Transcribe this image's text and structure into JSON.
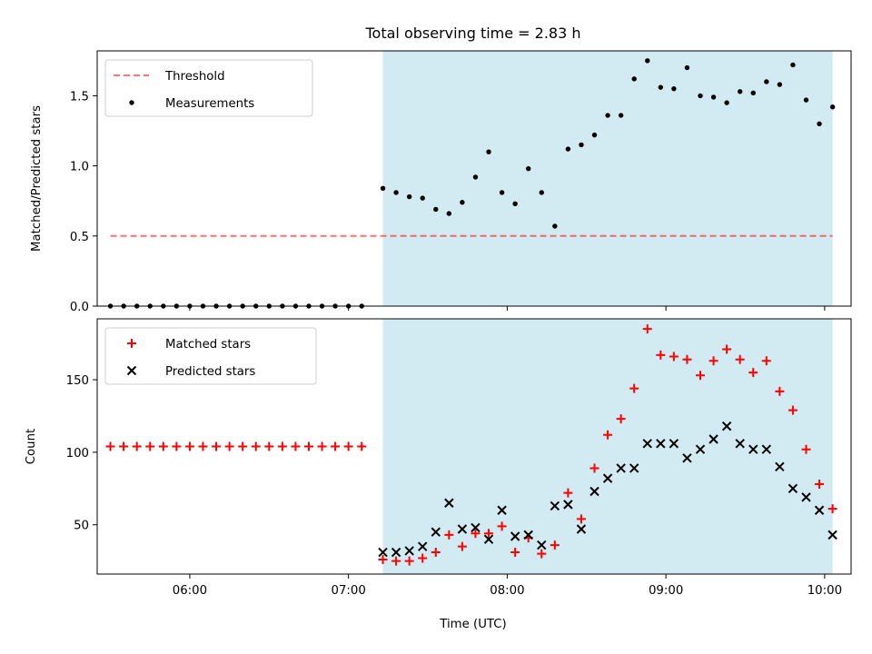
{
  "chart_data": [
    {
      "type": "scatter",
      "title": "Total observing time = 2.83 h",
      "xlabel": "",
      "ylabel": "Matched/Predicted stars",
      "ylim": [
        0,
        1.82
      ],
      "yticks": [
        0.0,
        0.5,
        1.0,
        1.5
      ],
      "ytick_labels": [
        "0.0",
        "0.5",
        "1.0",
        "1.5"
      ],
      "x_is_time": true,
      "xlim": [
        "05:25",
        "10:10"
      ],
      "highlight_span": {
        "from": "07:13",
        "to": "10:03",
        "color": "#add8e6"
      },
      "grid": false,
      "legend_position": "upper left",
      "series": [
        {
          "name": "Threshold",
          "kind": "line",
          "style": "dashed",
          "color": "#ff0000",
          "x": [
            "05:30",
            "10:03"
          ],
          "y": [
            0.5,
            0.5
          ]
        },
        {
          "name": "Measurements",
          "kind": "scatter",
          "marker": "dot",
          "color": "#000000",
          "x": [
            "05:30",
            "05:35",
            "05:40",
            "05:45",
            "05:50",
            "05:55",
            "06:00",
            "06:05",
            "06:10",
            "06:15",
            "06:20",
            "06:25",
            "06:30",
            "06:35",
            "06:40",
            "06:45",
            "06:50",
            "06:55",
            "07:00",
            "07:05",
            "07:13",
            "07:18",
            "07:23",
            "07:28",
            "07:33",
            "07:38",
            "07:43",
            "07:48",
            "07:53",
            "07:58",
            "08:03",
            "08:08",
            "08:13",
            "08:18",
            "08:23",
            "08:28",
            "08:33",
            "08:38",
            "08:43",
            "08:48",
            "08:53",
            "08:58",
            "09:03",
            "09:08",
            "09:13",
            "09:18",
            "09:23",
            "09:28",
            "09:33",
            "09:38",
            "09:43",
            "09:48",
            "09:53",
            "09:58",
            "10:03"
          ],
          "y": [
            0,
            0,
            0,
            0,
            0,
            0,
            0,
            0,
            0,
            0,
            0,
            0,
            0,
            0,
            0,
            0,
            0,
            0,
            0,
            0,
            0.84,
            0.81,
            0.78,
            0.77,
            0.69,
            0.66,
            0.74,
            0.92,
            1.1,
            0.81,
            0.73,
            0.98,
            0.81,
            0.57,
            1.12,
            1.15,
            1.22,
            1.36,
            1.36,
            1.62,
            1.75,
            1.56,
            1.55,
            1.7,
            1.5,
            1.49,
            1.45,
            1.53,
            1.52,
            1.6,
            1.58,
            1.72,
            1.47,
            1.3,
            1.42
          ]
        }
      ]
    },
    {
      "type": "scatter",
      "title": "",
      "xlabel": "Time (UTC)",
      "ylabel": "Count",
      "ylim": [
        16,
        192
      ],
      "yticks": [
        50,
        100,
        150
      ],
      "ytick_labels": [
        "50",
        "100",
        "150"
      ],
      "x_is_time": true,
      "xlim": [
        "05:25",
        "10:10"
      ],
      "xticks": [
        "06:00",
        "07:00",
        "08:00",
        "09:00",
        "10:00"
      ],
      "xtick_labels": [
        "06:00",
        "07:00",
        "08:00",
        "09:00",
        "10:00"
      ],
      "highlight_span": {
        "from": "07:13",
        "to": "10:03",
        "color": "#add8e6"
      },
      "grid": false,
      "legend_position": "upper left",
      "series": [
        {
          "name": "Matched stars",
          "kind": "scatter",
          "marker": "plus",
          "color": "#ff0000",
          "x": [
            "05:30",
            "05:35",
            "05:40",
            "05:45",
            "05:50",
            "05:55",
            "06:00",
            "06:05",
            "06:10",
            "06:15",
            "06:20",
            "06:25",
            "06:30",
            "06:35",
            "06:40",
            "06:45",
            "06:50",
            "06:55",
            "07:00",
            "07:05",
            "07:13",
            "07:18",
            "07:23",
            "07:28",
            "07:33",
            "07:38",
            "07:43",
            "07:48",
            "07:53",
            "07:58",
            "08:03",
            "08:08",
            "08:13",
            "08:18",
            "08:23",
            "08:28",
            "08:33",
            "08:38",
            "08:43",
            "08:48",
            "08:53",
            "08:58",
            "09:03",
            "09:08",
            "09:13",
            "09:18",
            "09:23",
            "09:28",
            "09:33",
            "09:38",
            "09:43",
            "09:48",
            "09:53",
            "09:58",
            "10:03"
          ],
          "y": [
            104,
            104,
            104,
            104,
            104,
            104,
            104,
            104,
            104,
            104,
            104,
            104,
            104,
            104,
            104,
            104,
            104,
            104,
            104,
            104,
            26,
            25,
            25,
            27,
            31,
            43,
            35,
            44,
            44,
            49,
            31,
            41,
            30,
            36,
            72,
            54,
            89,
            112,
            123,
            144,
            185,
            167,
            166,
            164,
            153,
            163,
            171,
            164,
            155,
            163,
            142,
            129,
            102,
            78,
            61
          ]
        },
        {
          "name": "Predicted stars",
          "kind": "scatter",
          "marker": "x",
          "color": "#000000",
          "x": [
            "07:13",
            "07:18",
            "07:23",
            "07:28",
            "07:33",
            "07:38",
            "07:43",
            "07:48",
            "07:53",
            "07:58",
            "08:03",
            "08:08",
            "08:13",
            "08:18",
            "08:23",
            "08:28",
            "08:33",
            "08:38",
            "08:43",
            "08:48",
            "08:53",
            "08:58",
            "09:03",
            "09:08",
            "09:13",
            "09:18",
            "09:23",
            "09:28",
            "09:33",
            "09:38",
            "09:43",
            "09:48",
            "09:53",
            "09:58",
            "10:03"
          ],
          "y": [
            31,
            31,
            32,
            35,
            45,
            65,
            47,
            48,
            40,
            60,
            42,
            43,
            36,
            63,
            64,
            47,
            73,
            82,
            89,
            89,
            106,
            106,
            106,
            96,
            102,
            109,
            118,
            106,
            102,
            102,
            90,
            75,
            69,
            60,
            43
          ]
        }
      ]
    }
  ]
}
